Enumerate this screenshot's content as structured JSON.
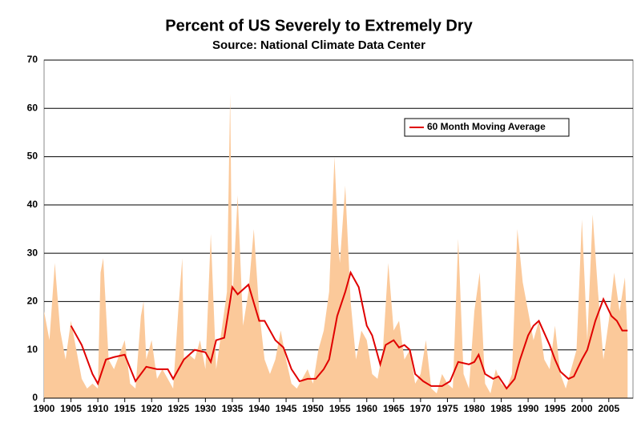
{
  "chart_data": {
    "type": "area-line",
    "title": "Percent of US Severely to Extremely Dry",
    "subtitle": "Source:  National Climate Data Center",
    "series": [
      {
        "kind": "area",
        "color": "#fbc99a",
        "x": [
          1900,
          1901,
          1902,
          1903,
          1904,
          1905,
          1906,
          1907,
          1908,
          1909,
          1910,
          1910.5,
          1911,
          1912,
          1913,
          1914,
          1915,
          1916,
          1917,
          1918,
          1918.5,
          1919,
          1920,
          1921,
          1922,
          1923,
          1924,
          1925,
          1925.7,
          1926,
          1927,
          1928,
          1929,
          1930,
          1931,
          1932,
          1933,
          1934,
          1934.6,
          1935,
          1936,
          1937,
          1938,
          1939,
          1940,
          1941,
          1942,
          1943,
          1944,
          1945,
          1946,
          1947,
          1948,
          1949,
          1950,
          1951,
          1952,
          1953,
          1954,
          1954.7,
          1955,
          1956,
          1957,
          1958,
          1959,
          1960,
          1961,
          1962,
          1963,
          1964,
          1965,
          1966,
          1967,
          1968,
          1969,
          1970,
          1971,
          1972,
          1973,
          1974,
          1975,
          1976,
          1977,
          1978,
          1979,
          1980,
          1981,
          1982,
          1983,
          1984,
          1985,
          1986,
          1987,
          1988,
          1989,
          1990,
          1991,
          1992,
          1993,
          1994,
          1995,
          1996,
          1997,
          1998,
          1999,
          2000,
          2001,
          2002,
          2003,
          2004,
          2005,
          2006,
          2007,
          2008,
          2008.5
        ],
        "values": [
          18,
          12,
          28,
          14,
          8,
          16,
          10,
          4,
          2,
          3,
          2,
          26,
          29,
          8,
          6,
          9,
          12,
          3,
          2,
          17,
          20,
          8,
          12,
          4,
          6,
          4,
          2,
          19,
          29,
          8,
          9,
          8,
          12,
          6,
          34,
          6,
          14,
          22,
          63,
          20,
          42,
          15,
          22,
          35,
          18,
          8,
          5,
          8,
          14,
          8,
          3,
          2,
          4,
          6,
          3,
          10,
          14,
          22,
          50,
          32,
          28,
          44,
          20,
          8,
          14,
          12,
          5,
          4,
          10,
          28,
          14,
          16,
          8,
          10,
          3,
          5,
          12,
          2,
          1,
          5,
          3,
          2,
          33,
          5,
          2,
          18,
          26,
          3,
          1,
          6,
          3,
          2,
          5,
          35,
          24,
          18,
          12,
          16,
          8,
          6,
          15,
          5,
          2,
          6,
          10,
          37,
          12,
          38,
          22,
          8,
          16,
          26,
          18,
          25,
          12
        ]
      },
      {
        "kind": "line",
        "name": "60 Month Moving Average",
        "color": "#e00000",
        "x": [
          1905,
          1907,
          1909,
          1910,
          1911.5,
          1913,
          1915,
          1917,
          1919,
          1921,
          1923,
          1924,
          1926,
          1928,
          1930,
          1931,
          1932,
          1933.5,
          1935,
          1936,
          1938,
          1940,
          1941,
          1943,
          1944.5,
          1946,
          1947.5,
          1949,
          1950.5,
          1952,
          1953,
          1954.5,
          1956,
          1957,
          1958.5,
          1960,
          1961,
          1962.5,
          1963.5,
          1965,
          1966,
          1967,
          1968,
          1969,
          1970.5,
          1972,
          1974,
          1975.5,
          1977,
          1979,
          1980,
          1980.8,
          1982,
          1983.5,
          1984.5,
          1986,
          1987.5,
          1988.5,
          1990,
          1991,
          1992,
          1994,
          1995,
          1996,
          1997.5,
          1998.5,
          2000,
          2001,
          2002.5,
          2004,
          2005.5,
          2006.5,
          2007.5,
          2008.5
        ],
        "values": [
          15,
          11,
          5,
          3,
          8,
          8.5,
          9,
          3.5,
          6.5,
          6,
          6,
          4,
          8,
          10,
          9.5,
          7.5,
          12,
          12.5,
          23,
          21.5,
          23.5,
          16,
          16,
          12,
          10.5,
          6,
          3.5,
          4,
          4,
          6,
          8,
          17,
          22,
          26,
          23,
          15,
          13,
          7,
          11,
          12,
          10.5,
          11,
          10,
          5,
          3.5,
          2.5,
          2.5,
          3.5,
          7.5,
          7,
          7.5,
          9,
          5,
          4,
          4.5,
          2,
          4,
          8,
          13,
          15,
          16,
          11,
          8,
          5.5,
          4,
          4.5,
          8,
          10,
          16,
          20.5,
          17,
          16,
          14,
          14
        ]
      }
    ],
    "xlim": [
      1900,
      2009.5
    ],
    "xticks": [
      1900,
      1905,
      1910,
      1915,
      1920,
      1925,
      1930,
      1935,
      1940,
      1945,
      1950,
      1955,
      1960,
      1965,
      1970,
      1975,
      1980,
      1985,
      1990,
      1995,
      2000,
      2005
    ],
    "ylim": [
      0,
      70
    ],
    "yticks": [
      0,
      10,
      20,
      30,
      40,
      50,
      60,
      70
    ],
    "grid": true,
    "legend": "top-right"
  }
}
